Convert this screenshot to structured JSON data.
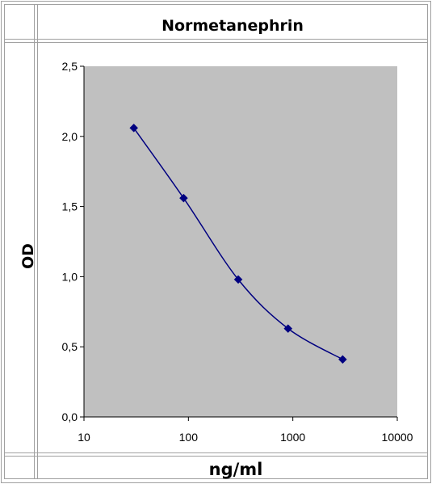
{
  "chart_data": {
    "type": "line",
    "title": "Normetanephrin",
    "xlabel": "ng/ml",
    "ylabel": "OD",
    "x_scale": "log",
    "xlim": [
      10,
      10000
    ],
    "ylim": [
      0,
      2.5
    ],
    "x_ticks": [
      "10",
      "100",
      "1000",
      "10000"
    ],
    "y_ticks": [
      "0,0",
      "0,5",
      "1,0",
      "1,5",
      "2,0",
      "2,5"
    ],
    "grid": false,
    "legend": "none",
    "series": [
      {
        "x": [
          30,
          90,
          300,
          900,
          3000
        ],
        "y": [
          2.06,
          1.56,
          0.98,
          0.63,
          0.41
        ]
      }
    ],
    "colors": {
      "plot_background": "#c0c0c0",
      "series_line": "#000080",
      "marker": "#000080",
      "table_border": "#a0a0a0"
    }
  }
}
